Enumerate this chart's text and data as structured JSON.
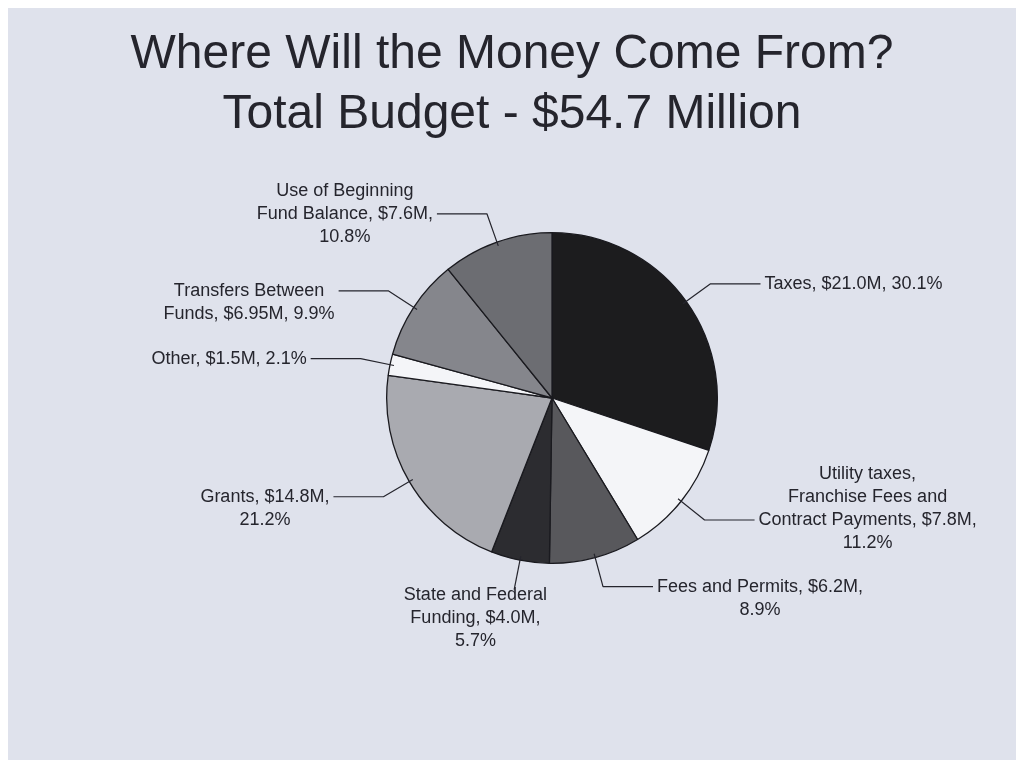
{
  "chart_data": {
    "type": "pie",
    "title": "Where Will the Money Come From?",
    "subtitle": "Total Budget - $54.7 Million",
    "categories": [
      "Taxes",
      "Utility taxes, Franchise Fees and Contract Payments",
      "Fees and Permits",
      "State and Federal Funding",
      "Grants",
      "Other",
      "Transfers Between Funds",
      "Use of Beginning Fund Balance"
    ],
    "values": [
      30.1,
      11.2,
      8.9,
      5.7,
      21.2,
      2.1,
      9.9,
      10.8
    ],
    "value_labels": [
      "$21.0M, 30.1%",
      "$7.8M, 11.2%",
      "$6.2M, 8.9%",
      "$4.0M, 5.7%",
      "$14.8M, 21.2%",
      "$1.5M, 2.1%",
      "$6.95M, 9.9%",
      "$7.6M, 10.8%"
    ],
    "colors": [
      "#1c1c1e",
      "#f4f5f8",
      "#58585c",
      "#2c2c30",
      "#a9aab0",
      "#f4f5f8",
      "#85868c",
      "#6c6d72"
    ]
  }
}
